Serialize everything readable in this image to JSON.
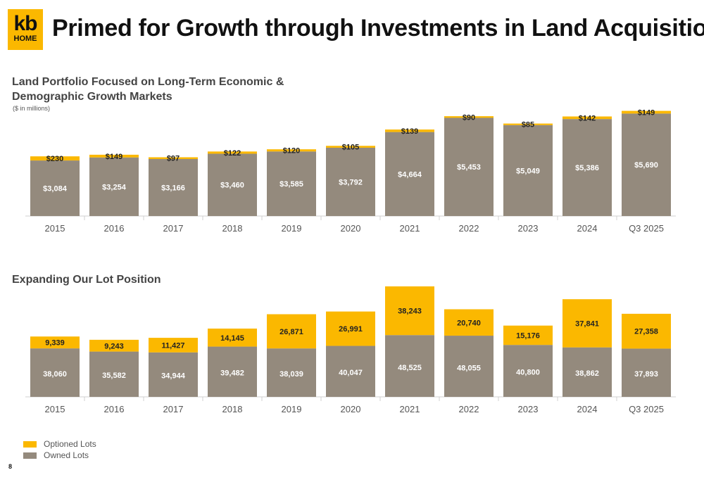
{
  "header": {
    "logo_top": "kb",
    "logo_bottom": "HOME",
    "title": "Primed for Growth through Investments in Land Acquisition"
  },
  "colors": {
    "owned": "#948a7d",
    "optioned": "#fbb800",
    "axis": "#d0d0d0"
  },
  "chart_data": [
    {
      "type": "bar",
      "stacked": true,
      "title": "Land Portfolio Focused on Long-Term Economic & Demographic Growth Markets",
      "subtitle": "($ in millions)",
      "categories": [
        "2015",
        "2016",
        "2017",
        "2018",
        "2019",
        "2020",
        "2021",
        "2022",
        "2023",
        "2024",
        "Q3 2025"
      ],
      "series": [
        {
          "name": "Owned Lots",
          "values": [
            3084,
            3254,
            3166,
            3460,
            3585,
            3792,
            4664,
            5453,
            5049,
            5386,
            5690
          ]
        },
        {
          "name": "Optioned Lots",
          "values": [
            230,
            149,
            97,
            122,
            120,
            105,
            139,
            90,
            85,
            142,
            149
          ]
        }
      ],
      "value_labels": {
        "owned": [
          "$3,084",
          "$3,254",
          "$3,166",
          "$3,460",
          "$3,585",
          "$3,792",
          "$4,664",
          "$5,453",
          "$5,049",
          "$5,386",
          "$5,690"
        ],
        "optioned": [
          "$230",
          "$149",
          "$97",
          "$122",
          "$120",
          "$105",
          "$139",
          "$90",
          "$85",
          "$142",
          "$149"
        ]
      },
      "ylim": [
        0,
        5900
      ],
      "grid": false
    },
    {
      "type": "bar",
      "stacked": true,
      "title": "Expanding Our Lot Position",
      "categories": [
        "2015",
        "2016",
        "2017",
        "2018",
        "2019",
        "2020",
        "2021",
        "2022",
        "2023",
        "2024",
        "Q3 2025"
      ],
      "series": [
        {
          "name": "Owned Lots",
          "values": [
            38060,
            35582,
            34944,
            39482,
            38039,
            40047,
            48525,
            48055,
            40800,
            38862,
            37893
          ]
        },
        {
          "name": "Optioned Lots",
          "values": [
            9339,
            9243,
            11427,
            14145,
            26871,
            26991,
            38243,
            20740,
            15176,
            37841,
            27358
          ]
        }
      ],
      "value_labels": {
        "owned": [
          "38,060",
          "35,582",
          "34,944",
          "39,482",
          "38,039",
          "40,047",
          "48,525",
          "48,055",
          "40,800",
          "38,862",
          "37,893"
        ],
        "optioned": [
          "9,339",
          "9,243",
          "11,427",
          "14,145",
          "26,871",
          "26,991",
          "38,243",
          "20,740",
          "15,176",
          "37,841",
          "27,358"
        ]
      },
      "ylim": [
        0,
        86768
      ],
      "grid": false
    }
  ],
  "legend": {
    "optioned": "Optioned Lots",
    "owned": "Owned Lots",
    "placement": "bottom-left"
  },
  "footer": {
    "page_number": "8"
  }
}
